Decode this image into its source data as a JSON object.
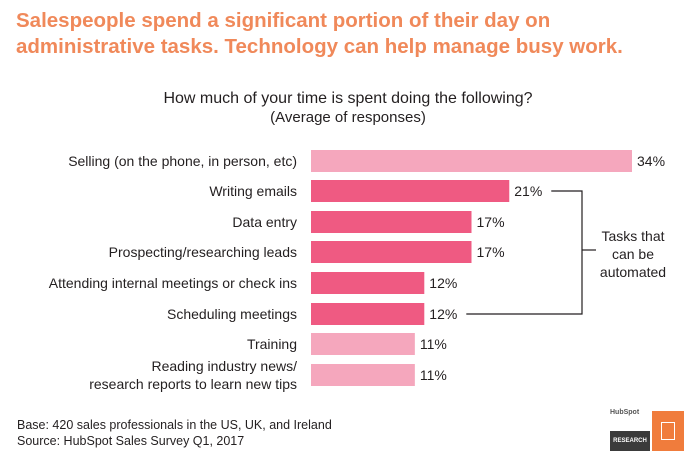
{
  "headline": {
    "line1": "Salespeople spend a significant portion of their day on",
    "line2": "administrative tasks. Technology can help manage busy work."
  },
  "question": {
    "title": "How much of your time is spent doing the following?",
    "subtitle": "(Average of responses)"
  },
  "chart_data": {
    "type": "bar",
    "orientation": "horizontal",
    "title": "How much of your time is spent doing the following?",
    "subtitle": "(Average of responses)",
    "categories": [
      [
        "Selling (on the phone, in person, etc)"
      ],
      [
        "Writing emails"
      ],
      [
        "Data entry"
      ],
      [
        "Prospecting/researching leads"
      ],
      [
        "Attending internal meetings or check ins"
      ],
      [
        "Scheduling meetings"
      ],
      [
        "Training"
      ],
      [
        "Reading industry news/",
        "research reports to learn new tips"
      ]
    ],
    "values": [
      34,
      21,
      17,
      17,
      12,
      12,
      11,
      11
    ],
    "value_suffix": "%",
    "automatable": [
      false,
      true,
      true,
      true,
      true,
      true,
      false,
      false
    ],
    "colors": {
      "automatable": "#ef5a82",
      "other": "#f5a7bd"
    },
    "annotation": {
      "lines": [
        "Tasks that",
        "can be",
        "automated"
      ],
      "applies_to": "Writing emails – Scheduling meetings"
    },
    "xlim": [
      0,
      34
    ],
    "grid": false,
    "legend": "none"
  },
  "footnote": {
    "base": "Base: 420 sales professionals in the US, UK, and Ireland",
    "source": "Source: HubSpot Sales Survey Q1, 2017"
  },
  "logo": {
    "brand": "HubSpot",
    "label": "RESEARCH"
  }
}
